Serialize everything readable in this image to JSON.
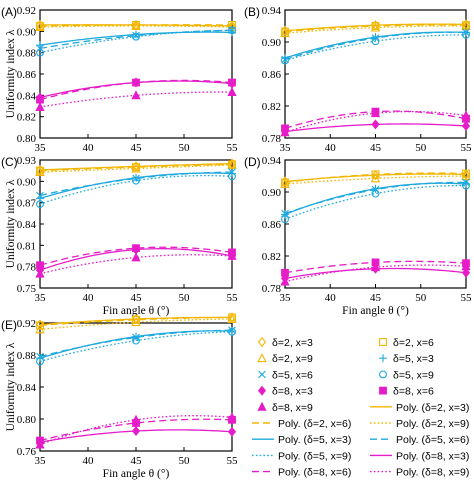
{
  "colors": {
    "delta2": "#f3b600",
    "delta5": "#1ea9df",
    "delta8": "#e61cc9"
  },
  "chart_data": [
    {
      "panel": "(A)",
      "type": "scatter",
      "xlabel": "",
      "ylabel": "Uniformity index λ",
      "xlim": [
        35,
        55
      ],
      "ylim": [
        0.8,
        0.92
      ],
      "xticks": [
        "35",
        "40",
        "45",
        "50",
        "55"
      ],
      "yticks": [
        "0.80",
        "0.82",
        "0.84",
        "0.86",
        "0.88",
        "0.90",
        "0.92"
      ],
      "x": [
        35,
        45,
        55
      ],
      "series": [
        {
          "key": "d2x3",
          "values": [
            0.906,
            0.906,
            0.905
          ]
        },
        {
          "key": "d2x6",
          "values": [
            0.905,
            0.906,
            0.906
          ]
        },
        {
          "key": "d2x9",
          "values": [
            0.904,
            0.905,
            0.904
          ]
        },
        {
          "key": "d5x3",
          "values": [
            0.887,
            0.897,
            0.899
          ]
        },
        {
          "key": "d5x6",
          "values": [
            0.884,
            0.896,
            0.901
          ]
        },
        {
          "key": "d5x9",
          "values": [
            0.88,
            0.895,
            0.901
          ]
        },
        {
          "key": "d8x3",
          "values": [
            0.838,
            0.852,
            0.851
          ]
        },
        {
          "key": "d8x6",
          "values": [
            0.836,
            0.852,
            0.852
          ]
        },
        {
          "key": "d8x9",
          "values": [
            0.829,
            0.84,
            0.843
          ]
        }
      ]
    },
    {
      "panel": "(B)",
      "type": "scatter",
      "xlabel": "",
      "ylabel": "",
      "xlim": [
        35,
        55
      ],
      "ylim": [
        0.78,
        0.94
      ],
      "xticks": [
        "35",
        "40",
        "45",
        "50",
        "55"
      ],
      "yticks": [
        "0.78",
        "0.82",
        "0.86",
        "0.90",
        "0.94"
      ],
      "x": [
        35,
        45,
        55
      ],
      "series": [
        {
          "key": "d2x3",
          "values": [
            0.914,
            0.921,
            0.922
          ]
        },
        {
          "key": "d2x6",
          "values": [
            0.913,
            0.92,
            0.921
          ]
        },
        {
          "key": "d2x9",
          "values": [
            0.911,
            0.918,
            0.92
          ]
        },
        {
          "key": "d5x3",
          "values": [
            0.88,
            0.906,
            0.912
          ]
        },
        {
          "key": "d5x6",
          "values": [
            0.878,
            0.905,
            0.912
          ]
        },
        {
          "key": "d5x9",
          "values": [
            0.877,
            0.901,
            0.909
          ]
        },
        {
          "key": "d8x3",
          "values": [
            0.788,
            0.797,
            0.795
          ]
        },
        {
          "key": "d8x6",
          "values": [
            0.792,
            0.813,
            0.804
          ]
        },
        {
          "key": "d8x9",
          "values": [
            0.787,
            0.811,
            0.808
          ]
        }
      ]
    },
    {
      "panel": "(C)",
      "type": "scatter",
      "xlabel": "Fin angle θ (°)",
      "ylabel": "Uniformity index λ",
      "xlim": [
        35,
        55
      ],
      "ylim": [
        0.75,
        0.93
      ],
      "xticks": [
        "35",
        "40",
        "45",
        "50",
        "55"
      ],
      "yticks": [
        "0.75",
        "0.78",
        "0.81",
        "0.84",
        "0.87",
        "0.90",
        "0.93"
      ],
      "x": [
        35,
        45,
        55
      ],
      "series": [
        {
          "key": "d2x3",
          "values": [
            0.916,
            0.921,
            0.925
          ]
        },
        {
          "key": "d2x6",
          "values": [
            0.915,
            0.92,
            0.924
          ]
        },
        {
          "key": "d2x9",
          "values": [
            0.913,
            0.918,
            0.923
          ]
        },
        {
          "key": "d5x3",
          "values": [
            0.876,
            0.905,
            0.911
          ]
        },
        {
          "key": "d5x6",
          "values": [
            0.88,
            0.904,
            0.913
          ]
        },
        {
          "key": "d5x9",
          "values": [
            0.868,
            0.901,
            0.907
          ]
        },
        {
          "key": "d8x3",
          "values": [
            0.775,
            0.804,
            0.795
          ]
        },
        {
          "key": "d8x6",
          "values": [
            0.782,
            0.806,
            0.8
          ]
        },
        {
          "key": "d8x9",
          "values": [
            0.77,
            0.793,
            0.795
          ]
        }
      ]
    },
    {
      "panel": "(D)",
      "type": "scatter",
      "xlabel": "Fin angle θ (°)",
      "ylabel": "",
      "xlim": [
        35,
        55
      ],
      "ylim": [
        0.78,
        0.94
      ],
      "xticks": [
        "35",
        "40",
        "45",
        "50",
        "55"
      ],
      "yticks": [
        "0.78",
        "0.82",
        "0.86",
        "0.90",
        "0.94"
      ],
      "x": [
        35,
        45,
        55
      ],
      "series": [
        {
          "key": "d2x3",
          "values": [
            0.913,
            0.921,
            0.922
          ]
        },
        {
          "key": "d2x6",
          "values": [
            0.912,
            0.922,
            0.923
          ]
        },
        {
          "key": "d2x9",
          "values": [
            0.91,
            0.917,
            0.92
          ]
        },
        {
          "key": "d5x3",
          "values": [
            0.872,
            0.904,
            0.91
          ]
        },
        {
          "key": "d5x6",
          "values": [
            0.873,
            0.903,
            0.912
          ]
        },
        {
          "key": "d5x9",
          "values": [
            0.866,
            0.898,
            0.908
          ]
        },
        {
          "key": "d8x3",
          "values": [
            0.792,
            0.804,
            0.799
          ]
        },
        {
          "key": "d8x6",
          "values": [
            0.799,
            0.812,
            0.811
          ]
        },
        {
          "key": "d8x9",
          "values": [
            0.788,
            0.806,
            0.807
          ]
        }
      ]
    },
    {
      "panel": "(E)",
      "type": "scatter",
      "xlabel": "Fin angle θ (°)",
      "ylabel": "Uniformity index λ",
      "xlim": [
        35,
        55
      ],
      "ylim": [
        0.76,
        0.92
      ],
      "xticks": [
        "35",
        "40",
        "45",
        "50",
        "55"
      ],
      "yticks": [
        "0.76",
        "0.80",
        "0.84",
        "0.88",
        "0.92"
      ],
      "x": [
        35,
        45,
        55
      ],
      "series": [
        {
          "key": "d2x3",
          "values": [
            0.918,
            0.925,
            0.927
          ]
        },
        {
          "key": "d2x6",
          "values": [
            0.917,
            0.924,
            0.927
          ]
        },
        {
          "key": "d2x9",
          "values": [
            0.912,
            0.921,
            0.925
          ]
        },
        {
          "key": "d5x3",
          "values": [
            0.876,
            0.903,
            0.91
          ]
        },
        {
          "key": "d5x6",
          "values": [
            0.878,
            0.902,
            0.911
          ]
        },
        {
          "key": "d5x9",
          "values": [
            0.872,
            0.898,
            0.909
          ]
        },
        {
          "key": "d8x3",
          "values": [
            0.771,
            0.785,
            0.784
          ]
        },
        {
          "key": "d8x6",
          "values": [
            0.773,
            0.795,
            0.799
          ]
        },
        {
          "key": "d8x9",
          "values": [
            0.768,
            0.799,
            0.802
          ]
        }
      ]
    }
  ],
  "legend": {
    "markers": [
      {
        "label": "δ=2, x=3",
        "key": "d2x3",
        "marker": "diamond-open",
        "color": "#f3b600"
      },
      {
        "label": "δ=2, x=6",
        "key": "d2x6",
        "marker": "square-open",
        "color": "#f3b600"
      },
      {
        "label": "δ=2, x=9",
        "key": "d2x9",
        "marker": "triangle-open",
        "color": "#f3b600"
      },
      {
        "label": "δ=5, x=3",
        "key": "d5x3",
        "marker": "plus",
        "color": "#1ea9df"
      },
      {
        "label": "δ=5, x=6",
        "key": "d5x6",
        "marker": "cross",
        "color": "#1ea9df"
      },
      {
        "label": "δ=5, x=9",
        "key": "d5x9",
        "marker": "circle-open",
        "color": "#1ea9df"
      },
      {
        "label": "δ=8, x=3",
        "key": "d8x3",
        "marker": "diamond-filled",
        "color": "#e61cc9"
      },
      {
        "label": "δ=8, x=6",
        "key": "d8x6",
        "marker": "square-filled",
        "color": "#e61cc9"
      },
      {
        "label": "δ=8, x=9",
        "key": "d8x9",
        "marker": "triangle-filled",
        "color": "#e61cc9"
      }
    ],
    "lines": [
      {
        "label": "Poly. (δ=2, x=3)",
        "key": "d2x3",
        "dash": "solid",
        "color": "#f3b600"
      },
      {
        "label": "Poly. (δ=2, x=6)",
        "key": "d2x6",
        "dash": "dashed",
        "color": "#f3b600"
      },
      {
        "label": "Poly. (δ=2, x=9)",
        "key": "d2x9",
        "dash": "dotted",
        "color": "#f3b600"
      },
      {
        "label": "Poly. (δ=5, x=3)",
        "key": "d5x3",
        "dash": "solid",
        "color": "#1ea9df"
      },
      {
        "label": "Poly. (δ=5, x=6)",
        "key": "d5x6",
        "dash": "dashed",
        "color": "#1ea9df"
      },
      {
        "label": "Poly. (δ=5, x=9)",
        "key": "d5x9",
        "dash": "dotted",
        "color": "#1ea9df"
      },
      {
        "label": "Poly. (δ=8, x=3)",
        "key": "d8x3",
        "dash": "solid",
        "color": "#e61cc9"
      },
      {
        "label": "Poly. (δ=8, x=6)",
        "key": "d8x6",
        "dash": "dashed",
        "color": "#e61cc9"
      },
      {
        "label": "Poly. (δ=8, x=9)",
        "key": "d8x9",
        "dash": "dotted",
        "color": "#e61cc9"
      }
    ]
  }
}
